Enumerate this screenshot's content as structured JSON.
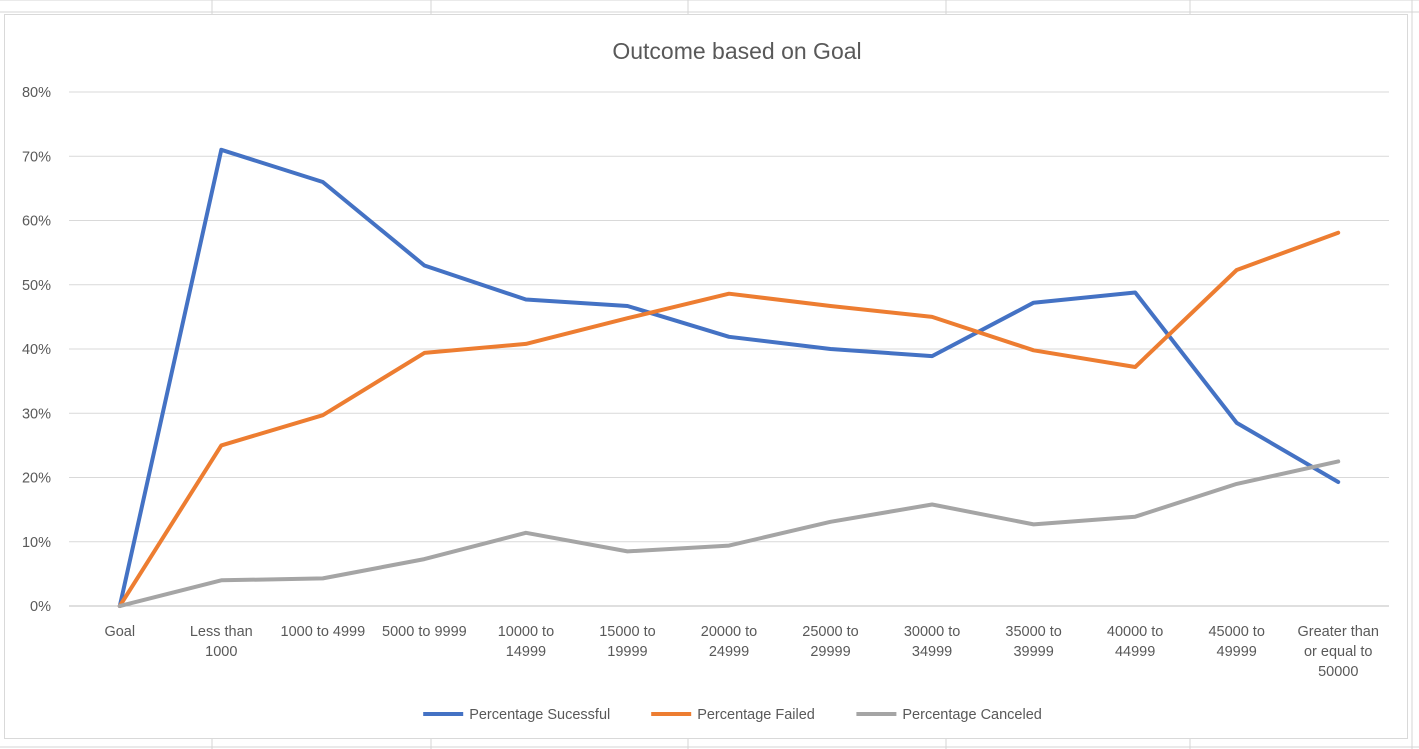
{
  "chart_data": {
    "type": "line",
    "title": "Outcome based on Goal",
    "xlabel": "",
    "ylabel": "",
    "ylim": [
      0,
      0.8
    ],
    "y_ticks": [
      0,
      0.1,
      0.2,
      0.3,
      0.4,
      0.5,
      0.6,
      0.7,
      0.8
    ],
    "y_tick_labels": [
      "0%",
      "10%",
      "20%",
      "30%",
      "40%",
      "50%",
      "60%",
      "70%",
      "80%"
    ],
    "grid": true,
    "legend_position": "bottom",
    "categories": [
      "Goal",
      "Less than 1000",
      "1000 to 4999",
      "5000 to 9999",
      "10000 to 14999",
      "15000 to 19999",
      "20000 to 24999",
      "25000 to 29999",
      "30000 to 34999",
      "35000 to 39999",
      "40000 to 44999",
      "45000 to 49999",
      "Greater than or equal to 50000"
    ],
    "category_label_lines": [
      [
        "Goal"
      ],
      [
        "Less than",
        "1000"
      ],
      [
        "1000 to 4999"
      ],
      [
        "5000 to 9999"
      ],
      [
        "10000 to",
        "14999"
      ],
      [
        "15000 to",
        "19999"
      ],
      [
        "20000 to",
        "24999"
      ],
      [
        "25000 to",
        "29999"
      ],
      [
        "30000 to",
        "34999"
      ],
      [
        "35000 to",
        "39999"
      ],
      [
        "40000 to",
        "44999"
      ],
      [
        "45000 to",
        "49999"
      ],
      [
        "Greater than",
        "or equal to",
        "50000"
      ]
    ],
    "series": [
      {
        "name": "Percentage Sucessful",
        "color": "#4472c4",
        "values": [
          0,
          0.71,
          0.66,
          0.53,
          0.477,
          0.467,
          0.419,
          0.4,
          0.389,
          0.472,
          0.488,
          0.285,
          0.193
        ]
      },
      {
        "name": "Percentage Failed",
        "color": "#ed7d31",
        "values": [
          0,
          0.25,
          0.297,
          0.394,
          0.408,
          0.448,
          0.486,
          0.467,
          0.45,
          0.398,
          0.372,
          0.523,
          0.581
        ]
      },
      {
        "name": "Percentage Canceled",
        "color": "#a5a5a5",
        "values": [
          0,
          0.04,
          0.043,
          0.073,
          0.114,
          0.085,
          0.094,
          0.131,
          0.158,
          0.127,
          0.139,
          0.19,
          0.225
        ]
      }
    ]
  }
}
